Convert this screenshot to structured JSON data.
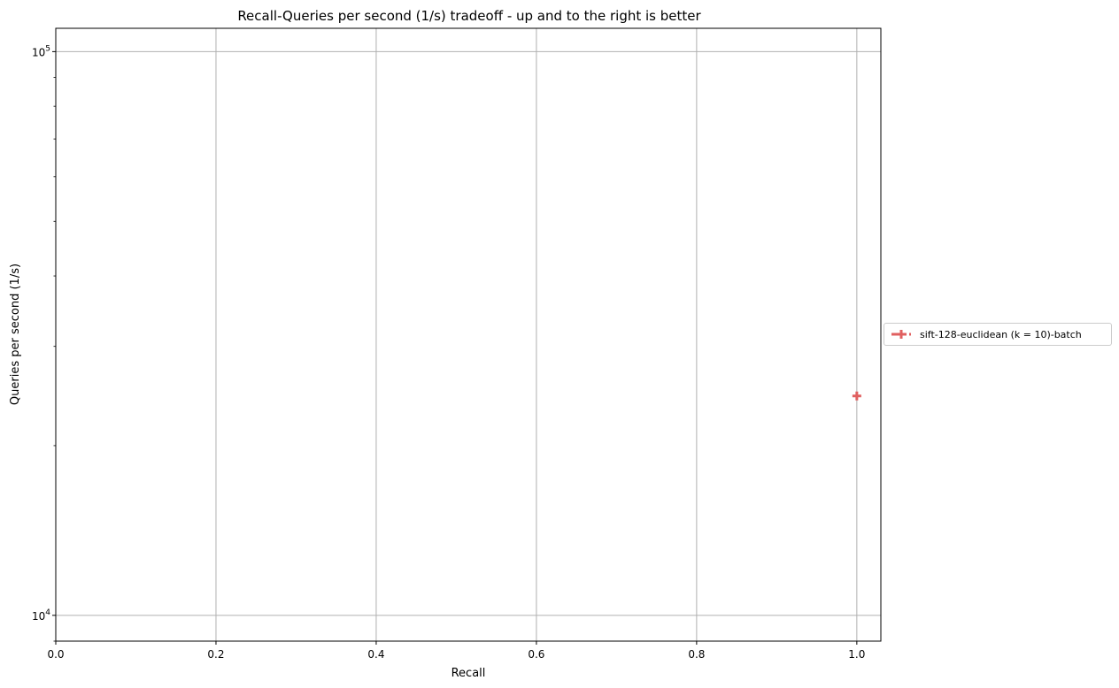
{
  "chart_data": {
    "type": "scatter",
    "title": "Recall-Queries per second (1/s) tradeoff - up and to the right is better",
    "xlabel": "Recall",
    "ylabel": "Queries per second (1/s)",
    "xlim": [
      0.0,
      1.03
    ],
    "ylim": [
      9000,
      110000
    ],
    "yscale": "log",
    "grid": true,
    "legend_placement": "right outside",
    "x_ticks": [
      {
        "value": 0.0,
        "label": "0.0"
      },
      {
        "value": 0.2,
        "label": "0.2"
      },
      {
        "value": 0.4,
        "label": "0.4"
      },
      {
        "value": 0.6,
        "label": "0.6"
      },
      {
        "value": 0.8,
        "label": "0.8"
      },
      {
        "value": 1.0,
        "label": "1.0"
      }
    ],
    "y_major_ticks": [
      {
        "value": 10000,
        "base": "10",
        "exp": "4"
      },
      {
        "value": 100000,
        "base": "10",
        "exp": "5"
      }
    ],
    "series": [
      {
        "name": "sift-128-euclidean (k = 10)-batch",
        "color": "#e06060",
        "marker": "plus",
        "linestyle": "dashed",
        "points": [
          {
            "x": 1.0,
            "y": 24500
          }
        ]
      }
    ]
  }
}
